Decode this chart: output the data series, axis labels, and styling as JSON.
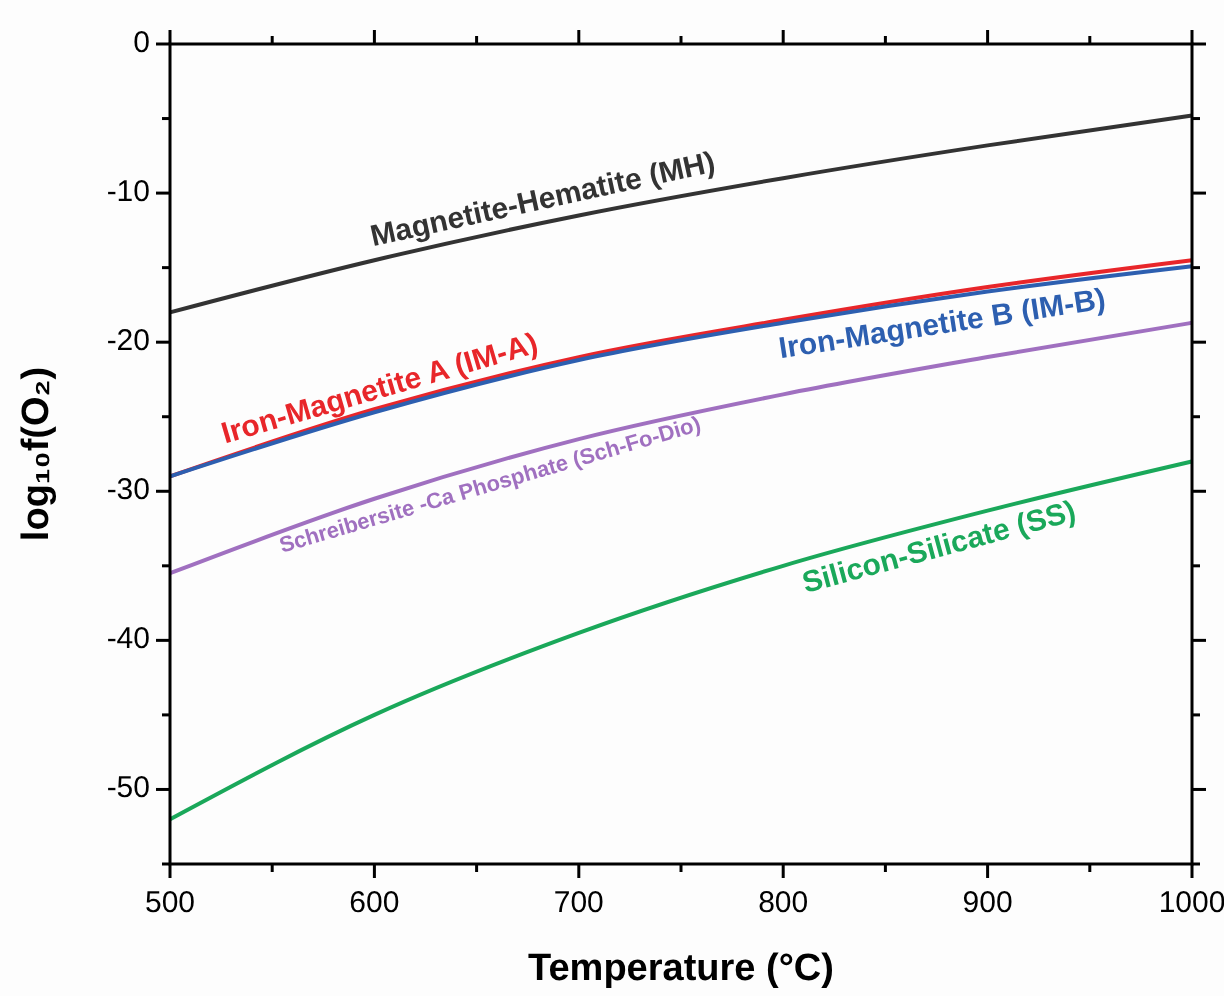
{
  "chart_data": {
    "type": "line",
    "xlabel": "Temperature (°C)",
    "ylabel": "log₁₀f(O₂)",
    "x": [
      500,
      600,
      700,
      800,
      900,
      1000
    ],
    "xlim": [
      500,
      1000
    ],
    "ylim": [
      -55,
      0
    ],
    "xticks": [
      500,
      {
        "value": 550,
        "label": null
      },
      600,
      {
        "value": 650,
        "label": null
      },
      700,
      {
        "value": 750,
        "label": null
      },
      800,
      {
        "value": 850,
        "label": null
      },
      900,
      {
        "value": 950,
        "label": null
      },
      1000
    ],
    "yticks": [
      0,
      {
        "value": -5,
        "label": null
      },
      -10,
      {
        "value": -15,
        "label": null
      },
      -20,
      {
        "value": -25,
        "label": null
      },
      -30,
      {
        "value": -35,
        "label": null
      },
      -40,
      {
        "value": -45,
        "label": null
      },
      -50,
      {
        "value": -55,
        "label": null
      }
    ],
    "grid": false,
    "legend": false,
    "marker": "none",
    "line_style": "solid",
    "series": [
      {
        "name": "Magnetite-Hematite (MH)",
        "color": "#333333",
        "values": [
          -18,
          -14.5,
          -11.5,
          -9,
          -6.8,
          -4.8
        ]
      },
      {
        "name": "Iron-Magnetite A (IM-A)",
        "color": "#e8262a",
        "values": [
          -29,
          -24.5,
          -21,
          -18.5,
          -16.3,
          -14.5
        ]
      },
      {
        "name": "Iron-Magnetite B (IM-B)",
        "color": "#2d5fb0",
        "values": [
          -29,
          -24.7,
          -21.2,
          -18.7,
          -16.6,
          -14.9
        ]
      },
      {
        "name": "Schreibersite -Ca Phosphate (Sch-Fo-Dio)",
        "color": "#a070c0",
        "values": [
          -35.5,
          -30.5,
          -26.5,
          -23.5,
          -21,
          -18.7
        ]
      },
      {
        "name": "Silicon-Silicate (SS)",
        "color": "#1aa85a",
        "values": [
          -52,
          -45,
          -39.5,
          -35,
          -31.3,
          -28
        ]
      }
    ]
  }
}
